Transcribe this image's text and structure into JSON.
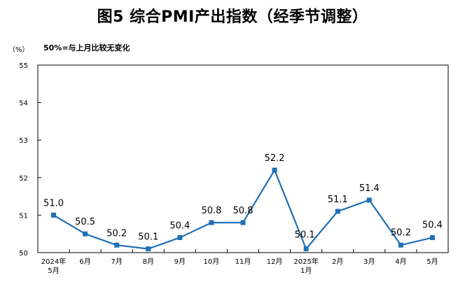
{
  "chart_data": {
    "type": "line",
    "title": "图5  综合PMI产出指数（经季节调整）",
    "unit_label": "（%）",
    "annotation": "50%=与上月比较无变化",
    "categories": [
      [
        "2024年",
        "5月"
      ],
      [
        "6月"
      ],
      [
        "7月"
      ],
      [
        "8月"
      ],
      [
        "9月"
      ],
      [
        "10月"
      ],
      [
        "11月"
      ],
      [
        "12月"
      ],
      [
        "2025年",
        "1月"
      ],
      [
        "2月"
      ],
      [
        "3月"
      ],
      [
        "4月"
      ],
      [
        "5月"
      ]
    ],
    "series": [
      {
        "values": [
          51.0,
          50.5,
          50.2,
          50.1,
          50.4,
          50.8,
          50.8,
          52.2,
          50.1,
          51.1,
          51.4,
          50.2,
          50.4
        ]
      }
    ],
    "data_labels": [
      "51.0",
      "50.5",
      "50.2",
      "50.1",
      "50.4",
      "50.8",
      "50.8",
      "52.2",
      "50.1",
      "51.1",
      "51.4",
      "50.2",
      "50.4"
    ],
    "yticks": [
      50,
      51,
      52,
      53,
      54,
      55
    ],
    "ylim": [
      50,
      55
    ],
    "grid": false,
    "line_color": "#1f6fb5"
  }
}
